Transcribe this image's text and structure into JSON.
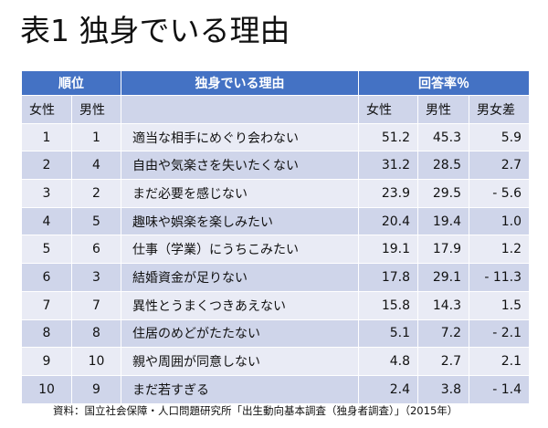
{
  "title": "表1 独身でいる理由",
  "header": {
    "rank": "順位",
    "reason": "独身でいる理由",
    "percent": "回答率％",
    "female": "女性",
    "male": "男性",
    "female_pct": "女性",
    "male_pct": "男性",
    "gap": "男女差"
  },
  "rows": [
    {
      "f": "1",
      "m": "1",
      "reason": "適当な相手にめぐり会わない",
      "fp": "51.2",
      "mp": "45.3",
      "diff": "5.9"
    },
    {
      "f": "2",
      "m": "4",
      "reason": "自由や気楽さを失いたくない",
      "fp": "31.2",
      "mp": "28.5",
      "diff": "2.7"
    },
    {
      "f": "3",
      "m": "2",
      "reason": "まだ必要を感じない",
      "fp": "23.9",
      "mp": "29.5",
      "diff": "- 5.6"
    },
    {
      "f": "4",
      "m": "5",
      "reason": "趣味や娯楽を楽しみたい",
      "fp": "20.4",
      "mp": "19.4",
      "diff": "1.0"
    },
    {
      "f": "5",
      "m": "6",
      "reason": "仕事（学業）にうちこみたい",
      "fp": "19.1",
      "mp": "17.9",
      "diff": "1.2"
    },
    {
      "f": "6",
      "m": "3",
      "reason": "結婚資金が足りない",
      "fp": "17.8",
      "mp": "29.1",
      "diff": "- 11.3"
    },
    {
      "f": "7",
      "m": "7",
      "reason": "異性とうまくつきあえない",
      "fp": "15.8",
      "mp": "14.3",
      "diff": "1.5"
    },
    {
      "f": "8",
      "m": "8",
      "reason": "住居のめどがたたない",
      "fp": "5.1",
      "mp": "7.2",
      "diff": "- 2.1"
    },
    {
      "f": "9",
      "m": "10",
      "reason": "親や周囲が同意しない",
      "fp": "4.8",
      "mp": "2.7",
      "diff": "2.1"
    },
    {
      "f": "10",
      "m": "9",
      "reason": "まだ若すぎる",
      "fp": "2.4",
      "mp": "3.8",
      "diff": "- 1.4"
    }
  ],
  "source": "資料：国立社会保障・人口問題研究所「出生動向基本調査（独身者調査）」（2015年）"
}
